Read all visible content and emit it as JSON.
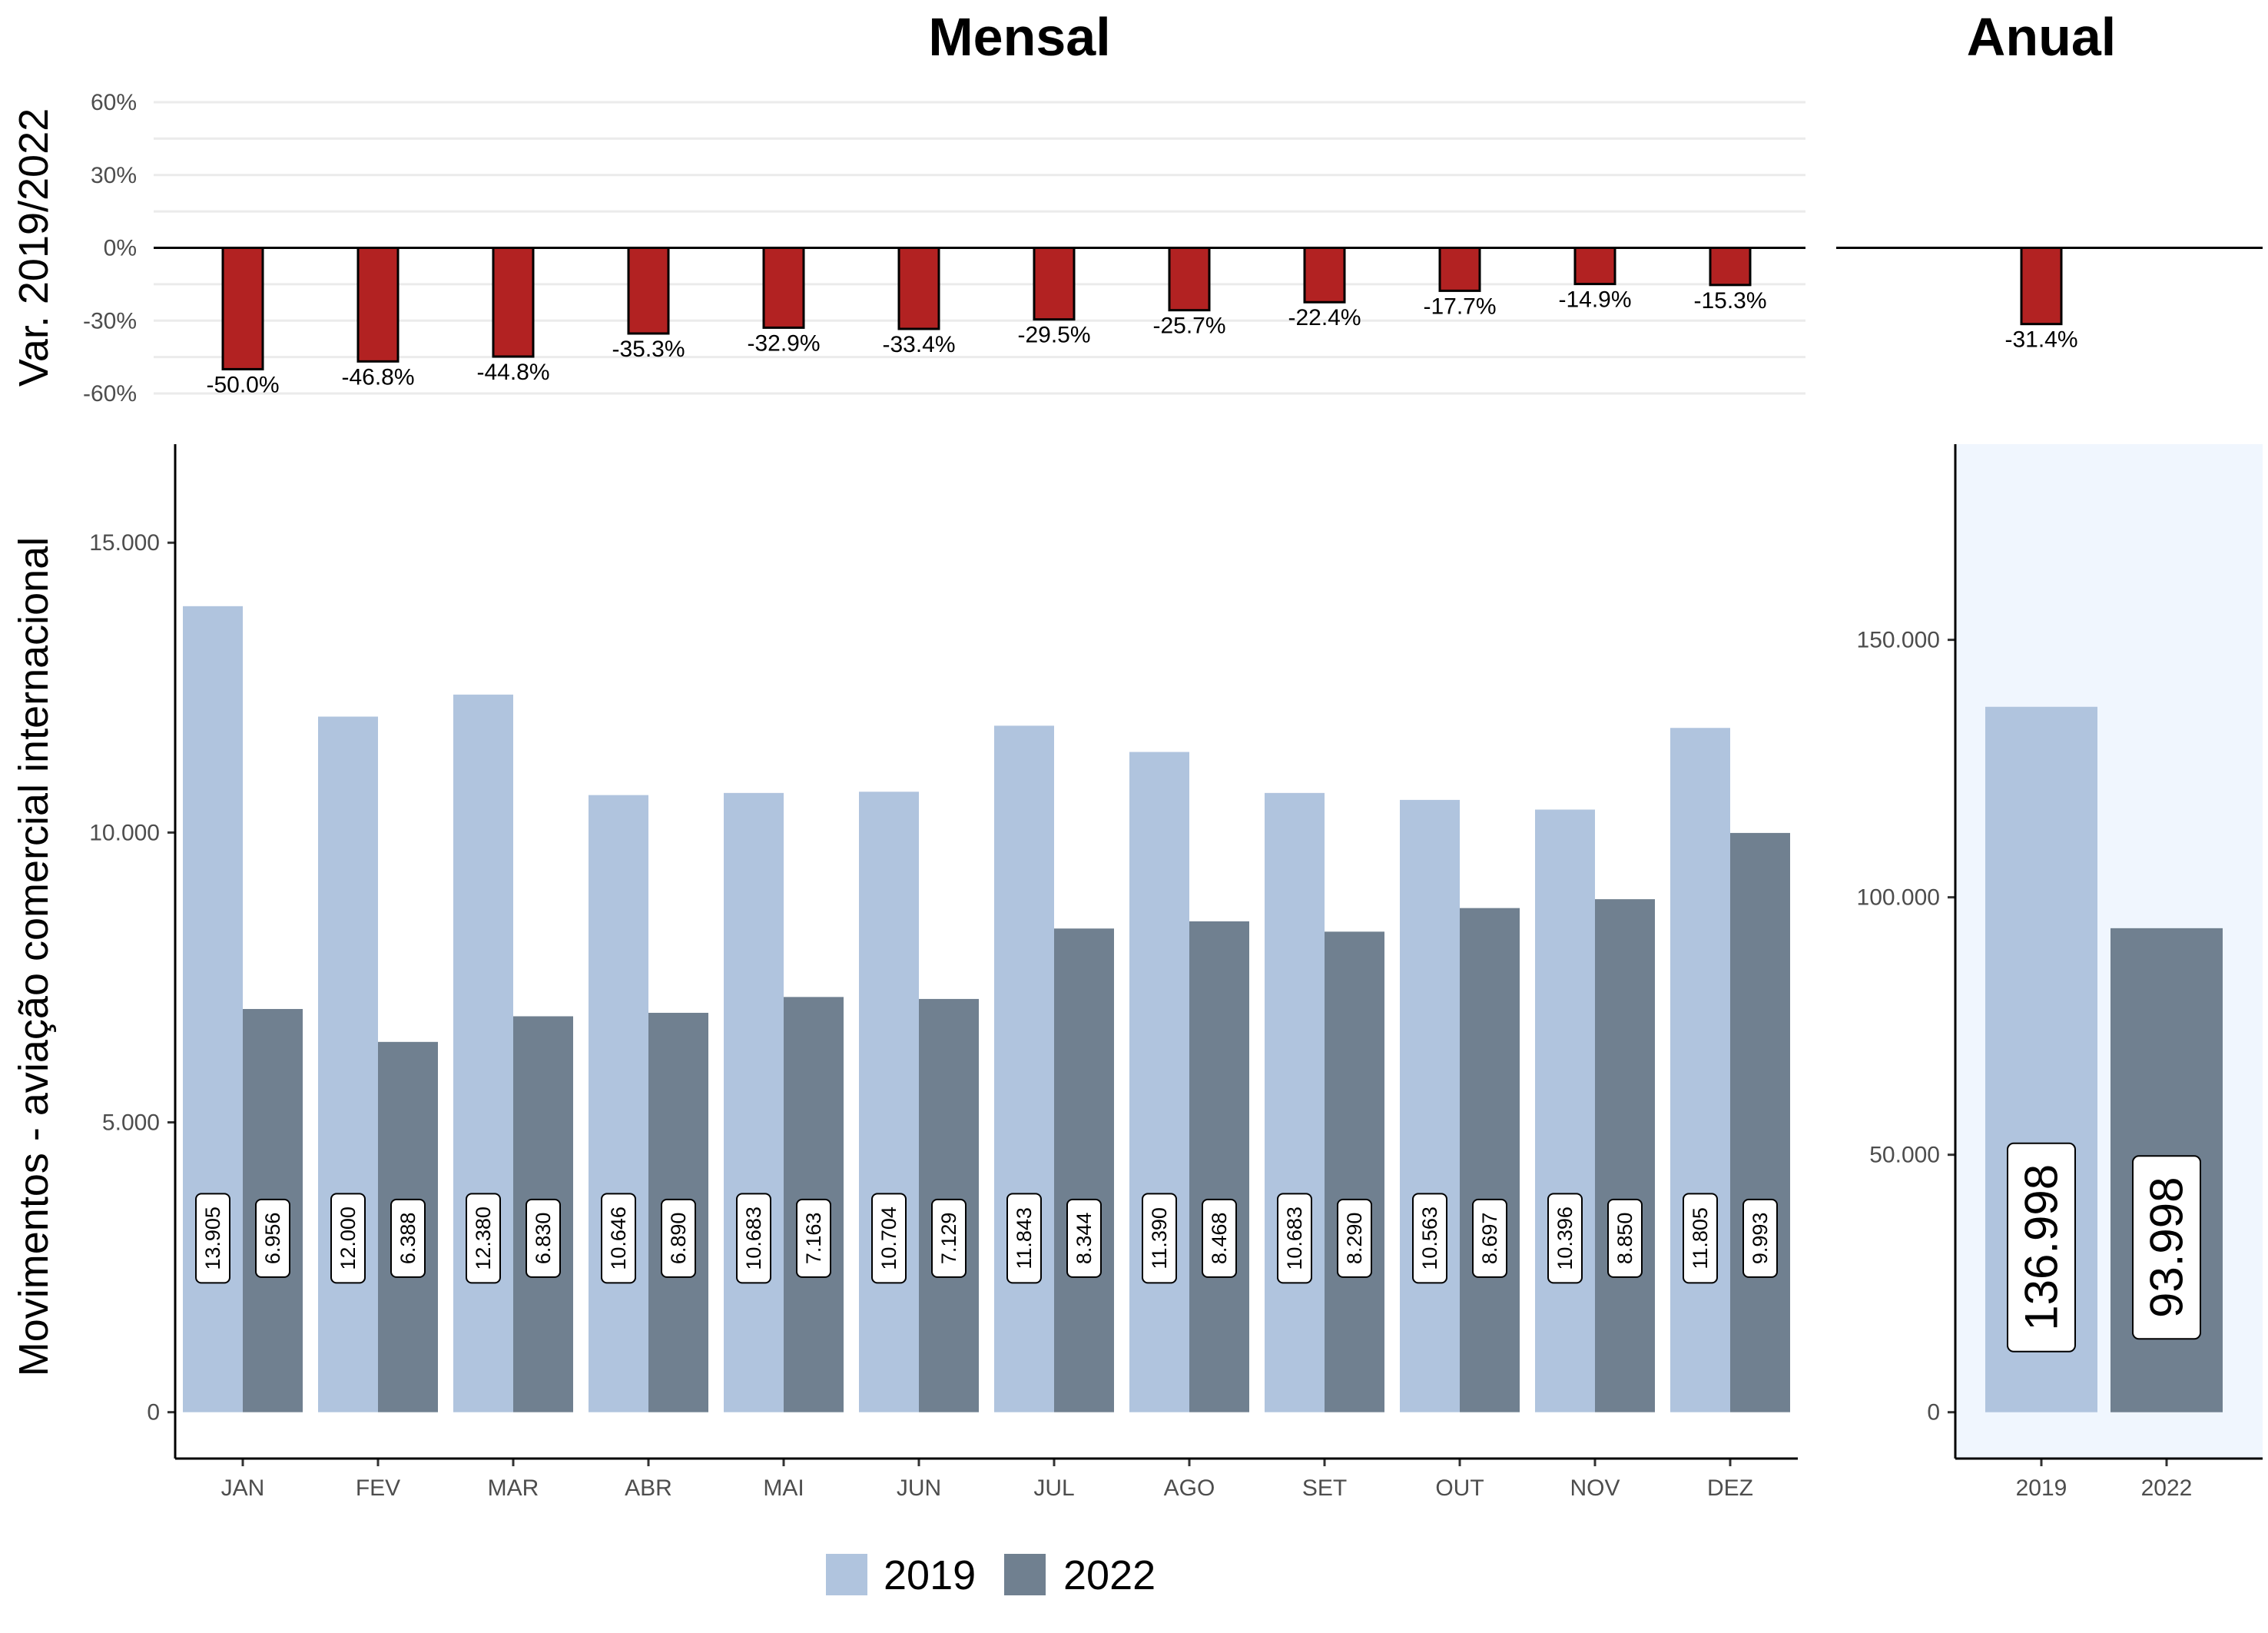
{
  "titles": {
    "monthly": "Mensal",
    "annual": "Anual"
  },
  "ylabels": {
    "top": "Var. 2019/2022",
    "bottom": "Movimentos - aviação comercial internacional"
  },
  "colors": {
    "series_2019": "#b0c4de",
    "series_2022": "#708090",
    "variation": "#b22222",
    "annual_bg": "#f0f6fe"
  },
  "legend": [
    {
      "name": "2019",
      "color": "#b0c4de"
    },
    {
      "name": "2022",
      "color": "#708090"
    }
  ],
  "chart_data": [
    {
      "id": "monthly-variation",
      "type": "bar",
      "categories": [
        "JAN",
        "FEV",
        "MAR",
        "ABR",
        "MAI",
        "JUN",
        "JUL",
        "AGO",
        "SET",
        "OUT",
        "NOV",
        "DEZ"
      ],
      "values": [
        -50.0,
        -46.8,
        -44.8,
        -35.3,
        -32.9,
        -33.4,
        -29.5,
        -25.7,
        -22.4,
        -17.7,
        -14.9,
        -15.3
      ],
      "labels": [
        "-50.0%",
        "-46.8%",
        "-44.8%",
        "-35.3%",
        "-32.9%",
        "-33.4%",
        "-29.5%",
        "-25.7%",
        "-22.4%",
        "-17.7%",
        "-14.9%",
        "-15.3%"
      ],
      "ylim": [
        -60,
        60
      ],
      "yticks": [
        -60,
        -30,
        0,
        30,
        60
      ],
      "ytick_labels": [
        "-60%",
        "-30%",
        "0%",
        "30%",
        "60%"
      ],
      "grid": true
    },
    {
      "id": "annual-variation",
      "type": "bar",
      "categories": [
        "2019/2022"
      ],
      "values": [
        -31.4
      ],
      "labels": [
        "-31.4%"
      ],
      "ylim": [
        -60,
        60
      ]
    },
    {
      "id": "monthly-movements",
      "type": "bar",
      "categories": [
        "JAN",
        "FEV",
        "MAR",
        "ABR",
        "MAI",
        "JUN",
        "JUL",
        "AGO",
        "SET",
        "OUT",
        "NOV",
        "DEZ"
      ],
      "series": [
        {
          "name": "2019",
          "values": [
            13905,
            12000,
            12380,
            10646,
            10683,
            10704,
            11843,
            11390,
            10683,
            10563,
            10396,
            11805
          ],
          "labels": [
            "13.905",
            "12.000",
            "12.380",
            "10.646",
            "10.683",
            "10.704",
            "11.843",
            "11.390",
            "10.683",
            "10.563",
            "10.396",
            "11.805"
          ]
        },
        {
          "name": "2022",
          "values": [
            6956,
            6388,
            6830,
            6890,
            7163,
            7129,
            8344,
            8468,
            8290,
            8697,
            8850,
            9993
          ],
          "labels": [
            "6.956",
            "6.388",
            "6.830",
            "6.890",
            "7.163",
            "7.129",
            "8.344",
            "8.468",
            "8.290",
            "8.697",
            "8.850",
            "9.993"
          ]
        }
      ],
      "ylim": [
        -800,
        16700
      ],
      "yticks": [
        0,
        5000,
        10000,
        15000
      ],
      "ytick_labels": [
        "0",
        "5.000",
        "10.000",
        "15.000"
      ],
      "label_y": 3000
    },
    {
      "id": "annual-movements",
      "type": "bar",
      "categories": [
        "2019",
        "2022"
      ],
      "values": [
        136998,
        93998
      ],
      "labels": [
        "136.998",
        "93.998"
      ],
      "ylim": [
        -9000,
        188000
      ],
      "yticks": [
        0,
        50000,
        100000,
        150000
      ],
      "ytick_labels": [
        "0",
        "50.000",
        "100.000",
        "150.000"
      ],
      "label_y": 32000
    }
  ]
}
